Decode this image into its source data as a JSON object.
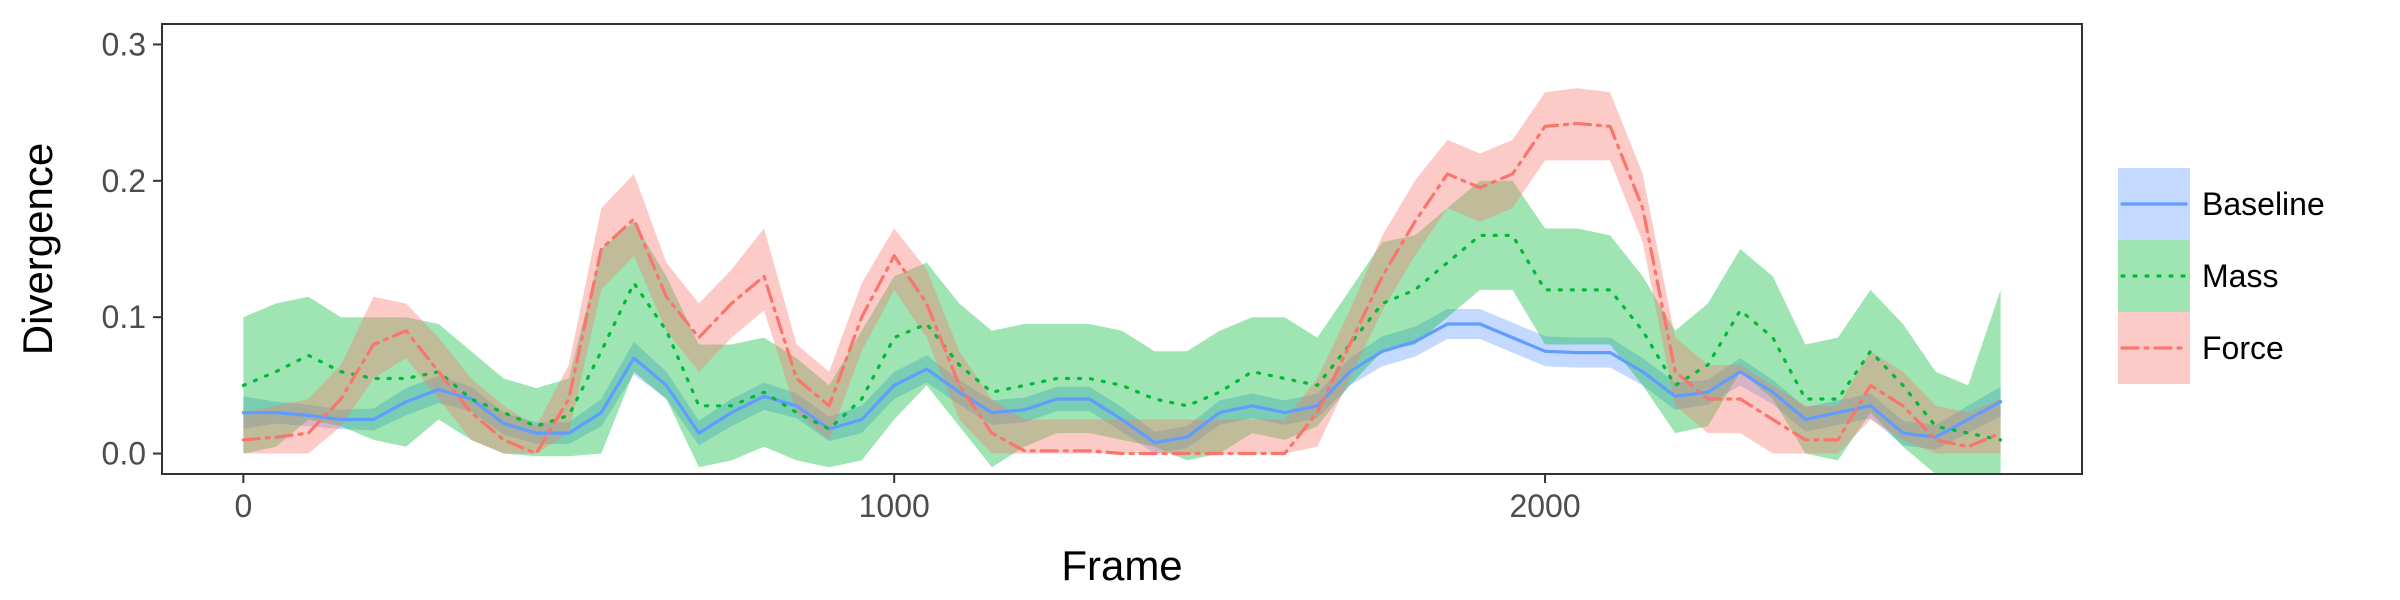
{
  "chart_data": {
    "type": "line",
    "title": "",
    "xlabel": "Frame",
    "ylabel": "Divergence",
    "xlim": [
      -125,
      2825
    ],
    "ylim": [
      -0.015,
      0.315
    ],
    "x_ticks": [
      0,
      1000,
      2000
    ],
    "x_tick_labels": [
      "0",
      "1000",
      "2000"
    ],
    "y_ticks": [
      0,
      0.1,
      0.2,
      0.3
    ],
    "y_tick_labels": [
      "0.0",
      "0.1",
      "0.2",
      "0.3"
    ],
    "grid": false,
    "legend_position": "right",
    "x": [
      0,
      50,
      100,
      150,
      200,
      250,
      300,
      350,
      400,
      450,
      500,
      550,
      600,
      650,
      700,
      750,
      800,
      850,
      900,
      950,
      1000,
      1050,
      1100,
      1150,
      1200,
      1250,
      1300,
      1350,
      1400,
      1450,
      1500,
      1550,
      1600,
      1650,
      1700,
      1750,
      1800,
      1850,
      1900,
      1950,
      2000,
      2050,
      2100,
      2150,
      2200,
      2250,
      2300,
      2350,
      2400,
      2450,
      2500,
      2550,
      2600,
      2650,
      2700
    ],
    "series": [
      {
        "name": "Baseline",
        "color": "#619CFF",
        "dash": "solid",
        "values": [
          0.03,
          0.03,
          0.028,
          0.025,
          0.025,
          0.038,
          0.047,
          0.04,
          0.022,
          0.015,
          0.015,
          0.03,
          0.07,
          0.05,
          0.015,
          0.03,
          0.042,
          0.035,
          0.018,
          0.025,
          0.05,
          0.062,
          0.045,
          0.03,
          0.032,
          0.04,
          0.04,
          0.025,
          0.008,
          0.012,
          0.03,
          0.035,
          0.03,
          0.035,
          0.06,
          0.075,
          0.082,
          0.095,
          0.095,
          0.085,
          0.075,
          0.074,
          0.074,
          0.06,
          0.042,
          0.045,
          0.06,
          0.045,
          0.025,
          0.03,
          0.035,
          0.015,
          0.012,
          0.025,
          0.038
        ],
        "lower": [
          0.018,
          0.022,
          0.02,
          0.018,
          0.017,
          0.028,
          0.037,
          0.031,
          0.014,
          0.007,
          0.007,
          0.02,
          0.058,
          0.04,
          0.006,
          0.02,
          0.032,
          0.026,
          0.009,
          0.015,
          0.04,
          0.052,
          0.036,
          0.021,
          0.023,
          0.031,
          0.031,
          0.016,
          0.0,
          0.004,
          0.021,
          0.026,
          0.021,
          0.026,
          0.05,
          0.064,
          0.071,
          0.084,
          0.084,
          0.074,
          0.064,
          0.063,
          0.063,
          0.05,
          0.032,
          0.036,
          0.05,
          0.036,
          0.016,
          0.021,
          0.026,
          0.006,
          0.003,
          0.015,
          0.027
        ],
        "upper": [
          0.042,
          0.038,
          0.036,
          0.032,
          0.033,
          0.048,
          0.057,
          0.049,
          0.03,
          0.023,
          0.023,
          0.04,
          0.082,
          0.06,
          0.024,
          0.04,
          0.052,
          0.044,
          0.027,
          0.035,
          0.06,
          0.072,
          0.054,
          0.039,
          0.041,
          0.049,
          0.049,
          0.034,
          0.016,
          0.02,
          0.039,
          0.044,
          0.039,
          0.044,
          0.07,
          0.086,
          0.093,
          0.106,
          0.106,
          0.096,
          0.086,
          0.085,
          0.085,
          0.07,
          0.052,
          0.054,
          0.07,
          0.054,
          0.034,
          0.039,
          0.044,
          0.024,
          0.021,
          0.035,
          0.049
        ]
      },
      {
        "name": "Mass",
        "color": "#00BA38",
        "dash": "dotted",
        "values": [
          0.05,
          0.06,
          0.072,
          0.06,
          0.055,
          0.055,
          0.06,
          0.04,
          0.03,
          0.02,
          0.028,
          0.075,
          0.125,
          0.09,
          0.035,
          0.035,
          0.045,
          0.03,
          0.018,
          0.04,
          0.085,
          0.095,
          0.065,
          0.045,
          0.05,
          0.055,
          0.055,
          0.05,
          0.04,
          0.035,
          0.045,
          0.06,
          0.055,
          0.05,
          0.08,
          0.11,
          0.12,
          0.14,
          0.16,
          0.16,
          0.12,
          0.12,
          0.12,
          0.09,
          0.05,
          0.065,
          0.105,
          0.085,
          0.04,
          0.04,
          0.075,
          0.05,
          0.02,
          0.015,
          0.01
        ],
        "lower": [
          0.0,
          0.005,
          0.025,
          0.02,
          0.01,
          0.005,
          0.025,
          0.01,
          0.0,
          -0.002,
          -0.002,
          0.0,
          0.06,
          0.04,
          -0.01,
          -0.005,
          0.005,
          -0.005,
          -0.01,
          -0.005,
          0.025,
          0.05,
          0.02,
          -0.01,
          0.005,
          0.015,
          0.015,
          0.01,
          0.005,
          -0.005,
          0.0,
          0.015,
          0.01,
          0.02,
          0.05,
          0.075,
          0.08,
          0.1,
          0.12,
          0.12,
          0.08,
          0.08,
          0.08,
          0.05,
          0.015,
          0.02,
          0.06,
          0.04,
          0.0,
          -0.005,
          0.03,
          0.005,
          -0.015,
          -0.015,
          -0.015
        ],
        "upper": [
          0.1,
          0.11,
          0.115,
          0.1,
          0.1,
          0.1,
          0.095,
          0.075,
          0.055,
          0.048,
          0.055,
          0.15,
          0.17,
          0.13,
          0.08,
          0.08,
          0.085,
          0.07,
          0.05,
          0.09,
          0.13,
          0.14,
          0.11,
          0.09,
          0.095,
          0.095,
          0.095,
          0.09,
          0.075,
          0.075,
          0.09,
          0.1,
          0.1,
          0.085,
          0.12,
          0.155,
          0.16,
          0.18,
          0.2,
          0.2,
          0.165,
          0.165,
          0.16,
          0.13,
          0.09,
          0.11,
          0.15,
          0.13,
          0.08,
          0.085,
          0.12,
          0.095,
          0.06,
          0.05,
          0.12
        ]
      },
      {
        "name": "Force",
        "color": "#F8766D",
        "dash": "dashdot",
        "values": [
          0.01,
          0.012,
          0.015,
          0.04,
          0.08,
          0.09,
          0.06,
          0.03,
          0.01,
          0.0,
          0.04,
          0.15,
          0.172,
          0.115,
          0.085,
          0.11,
          0.13,
          0.055,
          0.035,
          0.1,
          0.145,
          0.11,
          0.05,
          0.015,
          0.002,
          0.002,
          0.002,
          0.0,
          0.0,
          0.0,
          0.0,
          0.0,
          0.0,
          0.03,
          0.08,
          0.13,
          0.17,
          0.205,
          0.195,
          0.205,
          0.24,
          0.242,
          0.24,
          0.18,
          0.06,
          0.04,
          0.04,
          0.025,
          0.01,
          0.01,
          0.05,
          0.035,
          0.01,
          0.005,
          0.015
        ],
        "lower": [
          0.0,
          0.0,
          0.0,
          0.02,
          0.055,
          0.07,
          0.04,
          0.01,
          0.0,
          0.0,
          0.015,
          0.12,
          0.145,
          0.09,
          0.06,
          0.085,
          0.105,
          0.03,
          0.01,
          0.075,
          0.12,
          0.085,
          0.025,
          0.0,
          0.0,
          0.0,
          0.0,
          0.0,
          0.0,
          0.0,
          0.0,
          0.0,
          0.0,
          0.005,
          0.055,
          0.105,
          0.145,
          0.18,
          0.17,
          0.18,
          0.215,
          0.215,
          0.215,
          0.155,
          0.035,
          0.015,
          0.015,
          0.0,
          0.0,
          0.0,
          0.025,
          0.01,
          0.0,
          0.0,
          0.0
        ],
        "upper": [
          0.03,
          0.035,
          0.04,
          0.065,
          0.115,
          0.11,
          0.085,
          0.055,
          0.035,
          0.02,
          0.065,
          0.18,
          0.205,
          0.14,
          0.11,
          0.135,
          0.165,
          0.08,
          0.06,
          0.125,
          0.165,
          0.135,
          0.075,
          0.04,
          0.025,
          0.025,
          0.025,
          0.025,
          0.025,
          0.025,
          0.025,
          0.025,
          0.025,
          0.055,
          0.105,
          0.16,
          0.2,
          0.23,
          0.22,
          0.23,
          0.265,
          0.268,
          0.265,
          0.205,
          0.085,
          0.065,
          0.065,
          0.05,
          0.035,
          0.035,
          0.075,
          0.06,
          0.035,
          0.03,
          0.04
        ]
      }
    ]
  }
}
